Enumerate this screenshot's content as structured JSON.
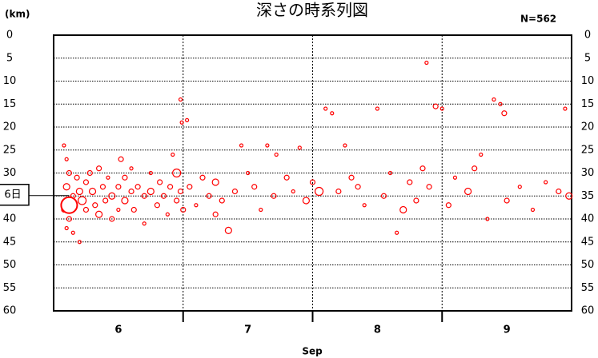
{
  "chart_data": {
    "type": "scatter",
    "title": "深さの時系列図",
    "y_unit": "(km)",
    "count_label": "N=562",
    "x_label": "Sep",
    "color": "#ff0000",
    "xlim": [
      6,
      10
    ],
    "ylim": [
      60,
      0
    ],
    "yticks": [
      0,
      5,
      10,
      15,
      20,
      25,
      30,
      35,
      40,
      45,
      50,
      55,
      60
    ],
    "xticks": [
      {
        "value": 6.5,
        "label": "6"
      },
      {
        "value": 7.5,
        "label": "7"
      },
      {
        "value": 8.5,
        "label": "8"
      },
      {
        "value": 9.5,
        "label": "9"
      }
    ],
    "xgrid": [
      7,
      8,
      9
    ],
    "grid": true,
    "x": [
      6.08,
      6.1,
      6.12,
      6.1,
      6.15,
      6.08,
      6.12,
      6.1,
      6.15,
      6.2,
      6.18,
      6.2,
      6.22,
      6.25,
      6.25,
      6.28,
      6.3,
      6.32,
      6.35,
      6.35,
      6.38,
      6.4,
      6.42,
      6.45,
      6.45,
      6.5,
      6.5,
      6.52,
      6.55,
      6.55,
      6.6,
      6.6,
      6.62,
      6.65,
      6.7,
      6.7,
      6.75,
      6.75,
      6.8,
      6.82,
      6.85,
      6.88,
      6.9,
      6.92,
      6.95,
      6.95,
      6.98,
      6.98,
      6.99,
      7.03,
      7.0,
      7.05,
      7.1,
      7.15,
      7.2,
      7.25,
      7.25,
      7.3,
      7.35,
      7.4,
      7.45,
      7.5,
      7.55,
      7.6,
      7.65,
      7.7,
      7.72,
      7.8,
      7.85,
      7.9,
      7.95,
      8.0,
      8.05,
      8.1,
      8.15,
      8.2,
      8.25,
      8.3,
      8.35,
      8.4,
      8.5,
      8.55,
      8.6,
      8.65,
      8.7,
      8.75,
      8.8,
      8.85,
      8.88,
      8.9,
      8.95,
      9.0,
      9.05,
      9.1,
      9.2,
      9.25,
      9.3,
      9.35,
      9.4,
      9.45,
      9.48,
      9.5,
      9.6,
      9.7,
      9.8,
      9.9,
      9.95,
      9.98
    ],
    "values": [
      24,
      27,
      30,
      33,
      35,
      38,
      40,
      42,
      43,
      45,
      31,
      34,
      36,
      32,
      38,
      30,
      34,
      37,
      29,
      39,
      33,
      36,
      31,
      35,
      40,
      33,
      38,
      27,
      31,
      36,
      34,
      29,
      38,
      33,
      35,
      41,
      30,
      34,
      37,
      32,
      35,
      39,
      33,
      26,
      30,
      36,
      34,
      14,
      19,
      18.5,
      38,
      33,
      37,
      31,
      35,
      39,
      32,
      36,
      42.5,
      34,
      24,
      30,
      33,
      38,
      24,
      35,
      26,
      31,
      34,
      24.5,
      36,
      32,
      34,
      16,
      17,
      34,
      24,
      31,
      33,
      37,
      16,
      35,
      30,
      43,
      38,
      32,
      36,
      29,
      6,
      33,
      15.5,
      16,
      37,
      31,
      34,
      29,
      26,
      40,
      14,
      15,
      17,
      36,
      33,
      38,
      32,
      34,
      16,
      35
    ],
    "sizes": [
      2,
      2,
      3,
      4,
      3,
      3,
      3,
      2,
      2,
      2,
      3,
      4,
      5,
      3,
      3,
      3,
      4,
      3,
      3,
      4,
      3,
      3,
      2,
      4,
      3,
      3,
      2,
      3,
      3,
      4,
      3,
      2,
      3,
      3,
      3,
      2,
      2,
      4,
      3,
      3,
      3,
      2,
      3,
      2,
      5,
      3,
      3,
      2,
      2,
      2,
      3,
      3,
      2,
      3,
      3,
      3,
      4,
      3,
      4,
      3,
      2,
      2,
      3,
      2,
      2,
      3,
      2,
      3,
      2,
      2,
      4,
      3,
      5,
      2,
      2,
      3,
      2,
      3,
      3,
      2,
      2,
      3,
      2,
      2,
      4,
      3,
      3,
      3,
      2,
      3,
      3,
      2,
      3,
      2,
      4,
      3,
      2,
      2,
      2,
      2,
      3,
      3,
      2,
      2,
      2,
      3,
      2,
      4
    ],
    "highlight": {
      "x": 6.12,
      "y": 37,
      "label": "6日"
    }
  }
}
